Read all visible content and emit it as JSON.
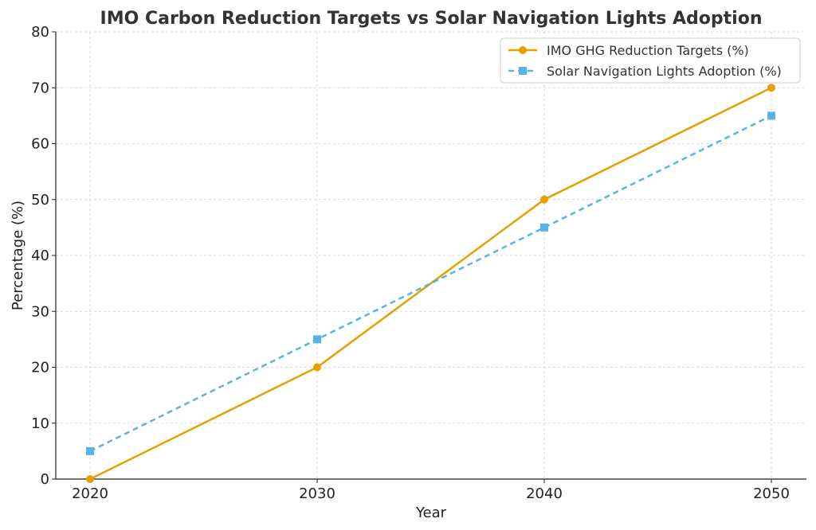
{
  "chart_data": {
    "type": "line",
    "title": "IMO Carbon Reduction Targets vs Solar Navigation Lights Adoption",
    "xlabel": "Year",
    "ylabel": "Percentage (%)",
    "x": [
      2020,
      2030,
      2040,
      2050
    ],
    "x_tick_labels": [
      "2020",
      "2030",
      "2040",
      "2050"
    ],
    "ylim": [
      0,
      80
    ],
    "y_ticks": [
      0,
      10,
      20,
      30,
      40,
      50,
      60,
      70,
      80
    ],
    "y_tick_labels": [
      "0",
      "10",
      "20",
      "30",
      "40",
      "50",
      "60",
      "70",
      "80"
    ],
    "grid": true,
    "legend_position": "top-right",
    "series": [
      {
        "name": "IMO GHG Reduction Targets (%)",
        "values": [
          0,
          20,
          50,
          70
        ],
        "color": "#E69F00",
        "line_style": "solid",
        "marker": "circle"
      },
      {
        "name": "Solar Navigation Lights Adoption (%)",
        "values": [
          5,
          25,
          45,
          65
        ],
        "color": "#56B4E9",
        "line_style": "dashed",
        "marker": "square"
      }
    ]
  }
}
